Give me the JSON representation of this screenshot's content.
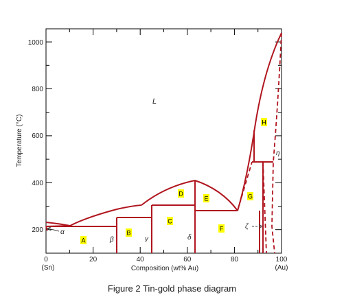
{
  "diagram": {
    "caption": "Figure 2 Tin-gold phase diagram",
    "x_axis": {
      "label": "Composition (wt% Au)",
      "ticks": [
        "0",
        "20",
        "40",
        "60",
        "80",
        "100"
      ],
      "left_end_label": "(Sn)",
      "right_end_label": "(Au)"
    },
    "y_axis": {
      "label": "Temperature (°C)",
      "ticks": [
        "200",
        "400",
        "600",
        "800",
        "1000"
      ]
    },
    "phase_labels": {
      "liquid": "L",
      "alpha": "α",
      "beta": "β",
      "gamma": "γ",
      "delta": "δ",
      "zeta": "ζ",
      "eta": "η"
    },
    "region_markers": [
      "A",
      "B",
      "C",
      "D",
      "E",
      "F",
      "G",
      "H"
    ],
    "colors": {
      "phase_boundary": "#b0151f",
      "region_highlight": "#ffff00",
      "frame": "#000000"
    }
  }
}
